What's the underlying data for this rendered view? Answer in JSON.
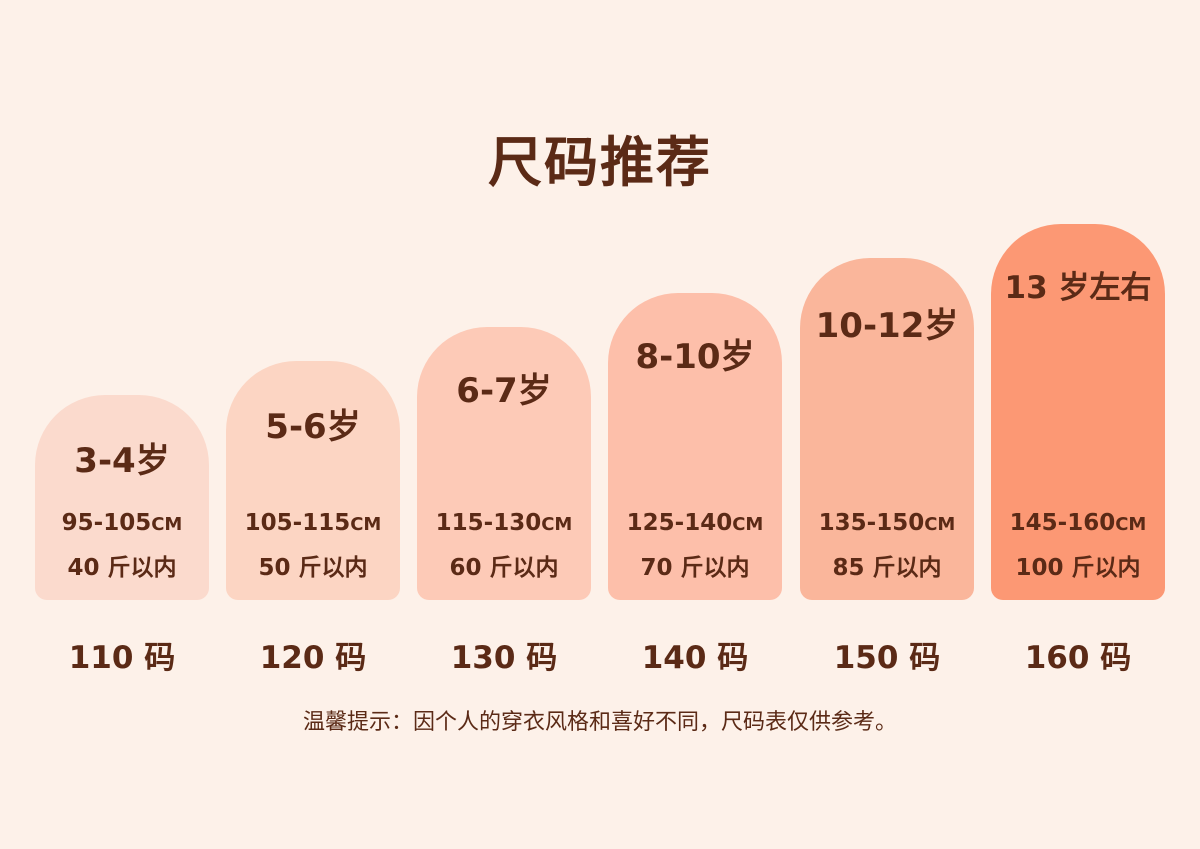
{
  "title": "尺码推荐",
  "sizes": [
    {
      "age": "3-4岁",
      "height": "95-105",
      "height_unit": "CM",
      "weight": "40 斤以内",
      "size": "110 码",
      "color": "#fbdacd"
    },
    {
      "age": "5-6岁",
      "height": "105-115",
      "height_unit": "CM",
      "weight": "50 斤以内",
      "size": "120 码",
      "color": "#fcd5c3"
    },
    {
      "age": "6-7岁",
      "height": "115-130",
      "height_unit": "CM",
      "weight": "60 斤以内",
      "size": "130 码",
      "color": "#fdcab7"
    },
    {
      "age": "8-10岁",
      "height": "125-140",
      "height_unit": "CM",
      "weight": "70 斤以内",
      "size": "140 码",
      "color": "#fdbfaa"
    },
    {
      "age": "10-12岁",
      "height": "135-150",
      "height_unit": "CM",
      "weight": "85 斤以内",
      "size": "150 码",
      "color": "#fab69b"
    },
    {
      "age": "13 岁左右",
      "height": "145-160",
      "height_unit": "CM",
      "weight": "100 斤以内",
      "size": "160 码",
      "color": "#fc9874"
    }
  ],
  "tip": "温馨提示：因个人的穿衣风格和喜好不同，尺码表仅供参考。"
}
